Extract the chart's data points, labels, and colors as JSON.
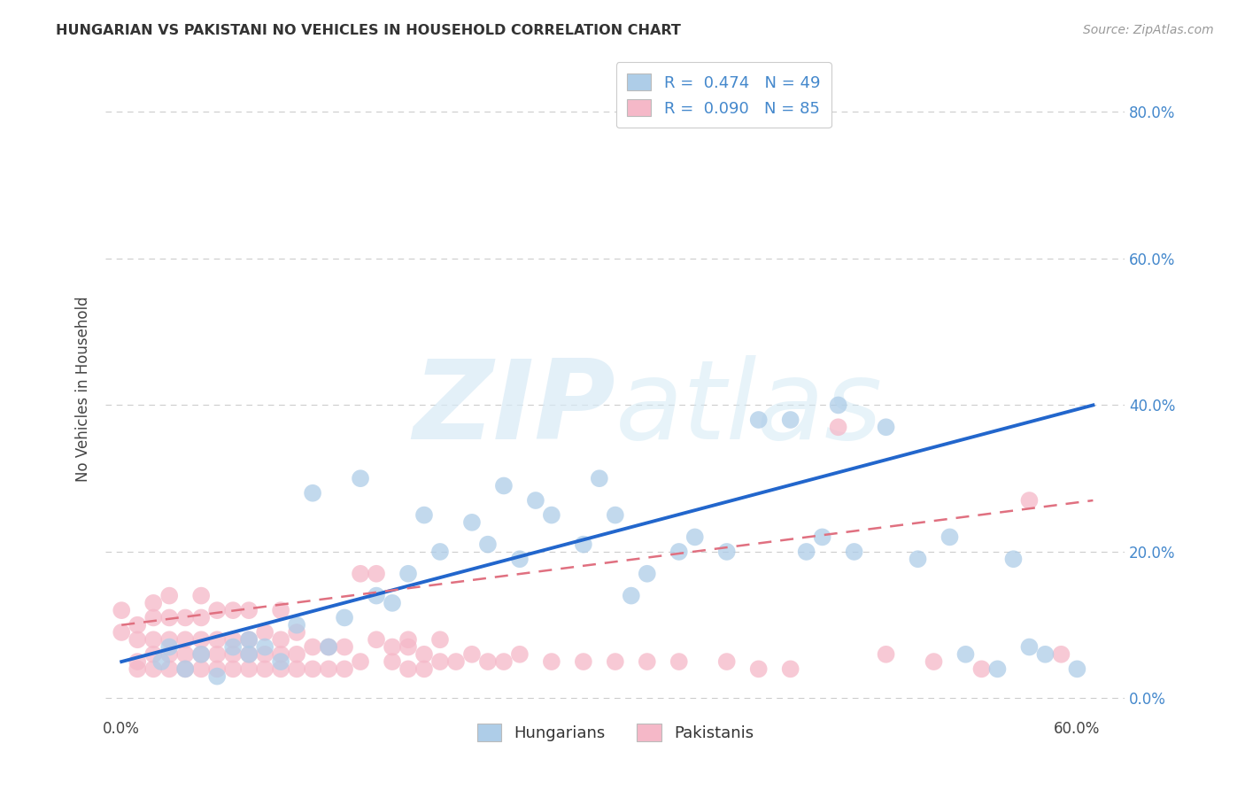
{
  "title": "HUNGARIAN VS PAKISTANI NO VEHICLES IN HOUSEHOLD CORRELATION CHART",
  "source": "Source: ZipAtlas.com",
  "ylabel": "No Vehicles in Household",
  "hungarian_R": "0.474",
  "hungarian_N": "49",
  "pakistani_R": "0.090",
  "pakistani_N": "85",
  "hungarian_color": "#aecde8",
  "pakistani_color": "#f5b8c8",
  "hungarian_line_color": "#2266cc",
  "pakistani_line_color": "#e07080",
  "watermark_zip": "ZIP",
  "watermark_atlas": "atlas",
  "legend_label_hungarian": "Hungarians",
  "legend_label_pakistani": "Pakistanis",
  "hungarian_x": [
    0.025,
    0.04,
    0.06,
    0.07,
    0.08,
    0.09,
    0.1,
    0.12,
    0.13,
    0.15,
    0.16,
    0.17,
    0.19,
    0.2,
    0.22,
    0.23,
    0.24,
    0.25,
    0.27,
    0.29,
    0.3,
    0.32,
    0.33,
    0.35,
    0.36,
    0.38,
    0.4,
    0.42,
    0.44,
    0.45,
    0.46,
    0.48,
    0.5,
    0.52,
    0.53,
    0.55,
    0.57,
    0.58,
    0.6,
    0.03,
    0.05,
    0.08,
    0.11,
    0.14,
    0.18,
    0.26,
    0.31,
    0.43,
    0.56
  ],
  "hungarian_y": [
    0.05,
    0.04,
    0.03,
    0.07,
    0.06,
    0.07,
    0.05,
    0.28,
    0.07,
    0.3,
    0.14,
    0.13,
    0.25,
    0.2,
    0.24,
    0.21,
    0.29,
    0.19,
    0.25,
    0.21,
    0.3,
    0.14,
    0.17,
    0.2,
    0.22,
    0.2,
    0.38,
    0.38,
    0.22,
    0.4,
    0.2,
    0.37,
    0.19,
    0.22,
    0.06,
    0.04,
    0.07,
    0.06,
    0.04,
    0.07,
    0.06,
    0.08,
    0.1,
    0.11,
    0.17,
    0.27,
    0.25,
    0.2,
    0.19
  ],
  "pakistani_x": [
    0.0,
    0.0,
    0.01,
    0.01,
    0.01,
    0.01,
    0.02,
    0.02,
    0.02,
    0.02,
    0.02,
    0.03,
    0.03,
    0.03,
    0.03,
    0.03,
    0.04,
    0.04,
    0.04,
    0.04,
    0.05,
    0.05,
    0.05,
    0.05,
    0.05,
    0.06,
    0.06,
    0.06,
    0.06,
    0.07,
    0.07,
    0.07,
    0.07,
    0.08,
    0.08,
    0.08,
    0.08,
    0.09,
    0.09,
    0.09,
    0.1,
    0.1,
    0.1,
    0.1,
    0.11,
    0.11,
    0.11,
    0.12,
    0.12,
    0.13,
    0.13,
    0.14,
    0.14,
    0.15,
    0.15,
    0.16,
    0.17,
    0.17,
    0.18,
    0.18,
    0.19,
    0.19,
    0.2,
    0.21,
    0.22,
    0.23,
    0.24,
    0.25,
    0.27,
    0.29,
    0.31,
    0.33,
    0.35,
    0.38,
    0.4,
    0.42,
    0.45,
    0.48,
    0.51,
    0.54,
    0.57,
    0.59,
    0.16,
    0.18,
    0.2
  ],
  "pakistani_y": [
    0.12,
    0.09,
    0.05,
    0.04,
    0.08,
    0.1,
    0.04,
    0.06,
    0.08,
    0.11,
    0.13,
    0.04,
    0.06,
    0.08,
    0.11,
    0.14,
    0.04,
    0.06,
    0.08,
    0.11,
    0.04,
    0.06,
    0.08,
    0.11,
    0.14,
    0.04,
    0.06,
    0.08,
    0.12,
    0.04,
    0.06,
    0.08,
    0.12,
    0.04,
    0.06,
    0.08,
    0.12,
    0.04,
    0.06,
    0.09,
    0.04,
    0.06,
    0.08,
    0.12,
    0.04,
    0.06,
    0.09,
    0.04,
    0.07,
    0.04,
    0.07,
    0.04,
    0.07,
    0.17,
    0.05,
    0.17,
    0.05,
    0.07,
    0.04,
    0.07,
    0.04,
    0.06,
    0.05,
    0.05,
    0.06,
    0.05,
    0.05,
    0.06,
    0.05,
    0.05,
    0.05,
    0.05,
    0.05,
    0.05,
    0.04,
    0.04,
    0.37,
    0.06,
    0.05,
    0.04,
    0.27,
    0.06,
    0.08,
    0.08,
    0.08
  ],
  "xlim": [
    -0.01,
    0.63
  ],
  "ylim": [
    -0.025,
    0.87
  ],
  "hungarian_line_x": [
    0.0,
    0.61
  ],
  "hungarian_line_y": [
    0.05,
    0.4
  ],
  "pakistani_line_x": [
    0.0,
    0.61
  ],
  "pakistani_line_y": [
    0.1,
    0.27
  ]
}
